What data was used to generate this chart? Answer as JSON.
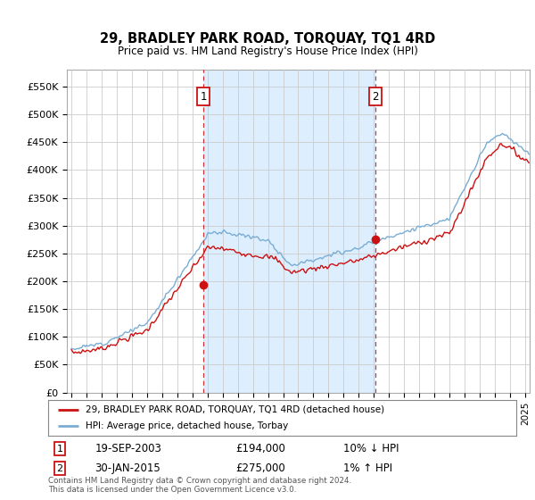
{
  "title": "29, BRADLEY PARK ROAD, TORQUAY, TQ1 4RD",
  "subtitle": "Price paid vs. HM Land Registry's House Price Index (HPI)",
  "ylabel_ticks": [
    "£0",
    "£50K",
    "£100K",
    "£150K",
    "£200K",
    "£250K",
    "£300K",
    "£350K",
    "£400K",
    "£450K",
    "£500K",
    "£550K"
  ],
  "ylim": [
    0,
    580000
  ],
  "hpi_color": "#7aadd4",
  "price_color": "#cc1111",
  "vline_color": "#cc1111",
  "shade_color": "#ddeeff",
  "grid_color": "#cccccc",
  "bg_color": "#ffffff",
  "plot_bg_color": "#ffffff",
  "legend_label_price": "29, BRADLEY PARK ROAD, TORQUAY, TQ1 4RD (detached house)",
  "legend_label_hpi": "HPI: Average price, detached house, Torbay",
  "transaction1_date": "19-SEP-2003",
  "transaction1_price": "£194,000",
  "transaction1_hpi": "10% ↓ HPI",
  "transaction2_date": "30-JAN-2015",
  "transaction2_price": "£275,000",
  "transaction2_hpi": "1% ↑ HPI",
  "footer": "Contains HM Land Registry data © Crown copyright and database right 2024.\nThis data is licensed under the Open Government Licence v3.0.",
  "transaction1_year": 2003.72,
  "transaction2_year": 2015.08,
  "transaction1_value": 194000,
  "transaction2_value": 275000,
  "xlim_left": 1994.7,
  "xlim_right": 2025.3
}
